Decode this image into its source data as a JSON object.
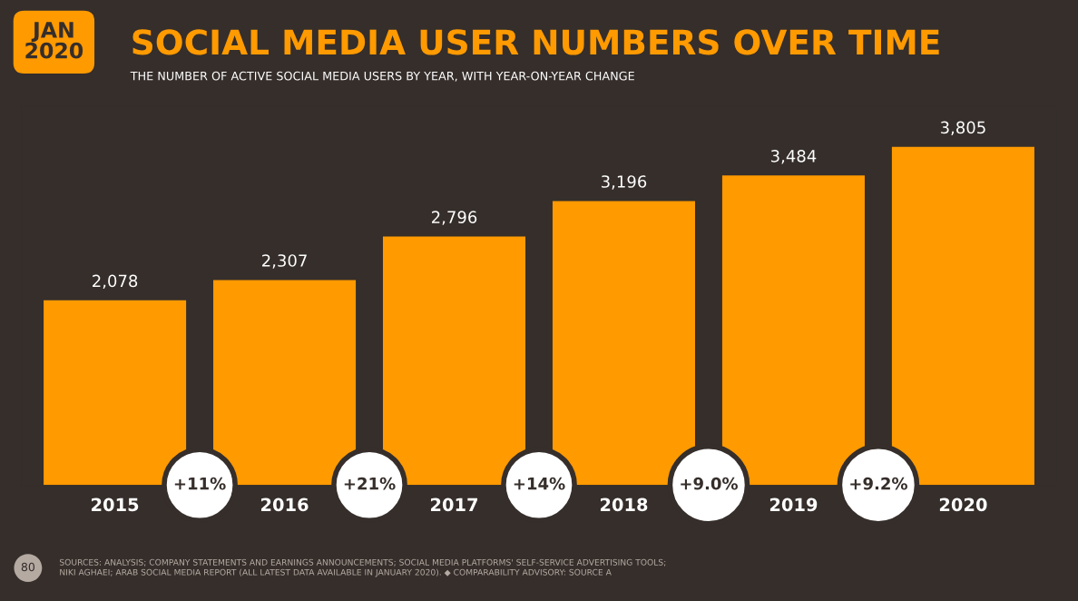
{
  "chart_data": {
    "type": "bar",
    "title": "SOCIAL MEDIA USER NUMBERS OVER TIME",
    "subtitle": "THE NUMBER OF ACTIVE SOCIAL MEDIA USERS BY YEAR, WITH YEAR-ON-YEAR CHANGE",
    "categories": [
      "2015",
      "2016",
      "2017",
      "2018",
      "2019",
      "2020"
    ],
    "values": [
      2078,
      2307,
      2796,
      3196,
      3484,
      3805
    ],
    "value_labels": [
      "2,078",
      "2,307",
      "2,796",
      "3,196",
      "3,484",
      "3,805"
    ],
    "color": "#ff9a00",
    "grid": false,
    "annotations": [
      "JAN\n2020",
      "80",
      "SOURCES: ANALYSIS; COMPANY STATEMENTS AND EARNINGS ANNOUNCEMENTS; SOCIAL MEDIA PLATFORMS' SELF-SERVICE ADVERTISING TOOLS;\nNIKI AGHAEI; ARAB SOCIAL MEDIA REPORT (ALL LATEST DATA AVAILABLE IN JANUARY 2020). ◆ COMPARABILITY ADVISORY: SOURCE A",
      "+11%",
      "+21%",
      "+14%",
      "+9.0%",
      "+9.2%"
    ]
  }
}
